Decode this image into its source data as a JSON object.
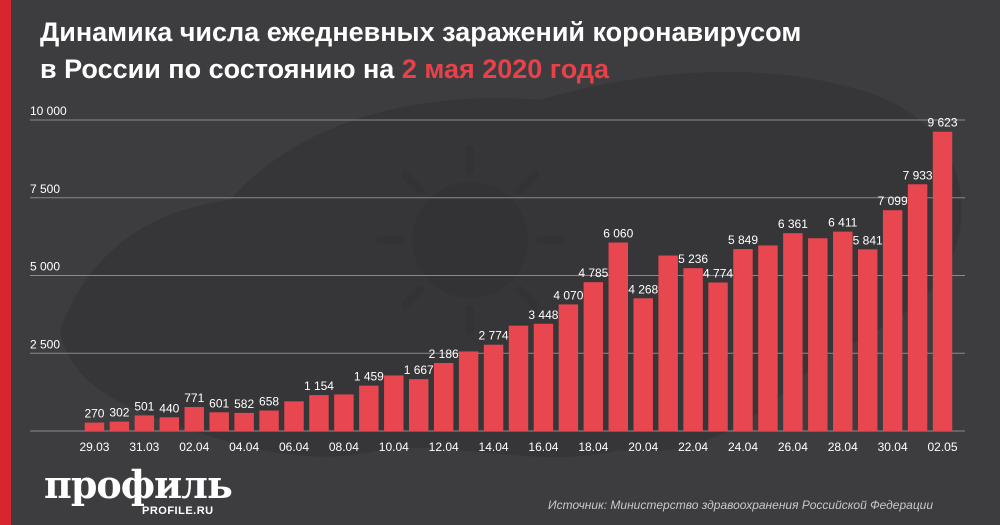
{
  "header": {
    "title_line1": "Динамика числа ежедневных заражений коронавирусом",
    "title_line2": "в России по состоянию на ",
    "title_accent": "2 мая 2020 года"
  },
  "footer": {
    "logo": "профиль",
    "logo_sub": "PROFILE.RU",
    "source": "Источник: Министерство здравоохранения Российской Федерации"
  },
  "colors": {
    "bar": "#e8474f",
    "accent": "#e8414a",
    "grid": "#8a8a8c",
    "text": "#ffffff"
  },
  "chart_data": {
    "type": "bar",
    "title": "",
    "xlabel": "",
    "ylabel": "",
    "ylim": [
      0,
      10000
    ],
    "yticks": [
      2500,
      5000,
      7500,
      10000
    ],
    "ytick_labels": [
      "2 500",
      "5 000",
      "7 500",
      "10 000"
    ],
    "categories": [
      "29.03",
      "30.03",
      "31.03",
      "01.04",
      "02.04",
      "03.04",
      "04.04",
      "05.04",
      "06.04",
      "07.04",
      "08.04",
      "09.04",
      "10.04",
      "11.04",
      "12.04",
      "13.04",
      "14.04",
      "15.04",
      "16.04",
      "17.04",
      "18.04",
      "19.04",
      "20.04",
      "21.04",
      "22.04",
      "23.04",
      "24.04",
      "25.04",
      "26.04",
      "27.04",
      "28.04",
      "29.04",
      "30.04",
      "01.05",
      "02.05"
    ],
    "xtick_labels": [
      "29.03",
      "",
      "31.03",
      "",
      "02.04",
      "",
      "04.04",
      "",
      "06.04",
      "",
      "08.04",
      "",
      "10.04",
      "",
      "12.04",
      "",
      "14.04",
      "",
      "16.04",
      "",
      "18.04",
      "",
      "20.04",
      "",
      "22.04",
      "",
      "24.04",
      "",
      "26.04",
      "",
      "28.04",
      "",
      "30.04",
      "",
      "02.05"
    ],
    "values": [
      270,
      302,
      501,
      440,
      771,
      601,
      582,
      658,
      954,
      1154,
      1175,
      1459,
      1786,
      1667,
      2186,
      2558,
      2774,
      3388,
      3448,
      4070,
      4785,
      6060,
      4268,
      5642,
      5236,
      4774,
      5849,
      5966,
      6361,
      6198,
      6411,
      5841,
      7099,
      7933,
      9623
    ],
    "labels": [
      "270",
      "302",
      "501",
      "440",
      "771",
      "601",
      "582",
      "658",
      "",
      "1 154",
      "",
      "1 459",
      "",
      "1 667",
      "2 186",
      "",
      "2 774",
      "",
      "3 448",
      "4 070",
      "4 785",
      "6 060",
      "4 268",
      "",
      "5 236",
      "4 774",
      "5 849",
      "",
      "6 361",
      "",
      "6 411",
      "5 841",
      "7 099",
      "7 933",
      "9 623"
    ],
    "grid": true,
    "legend": "none"
  }
}
